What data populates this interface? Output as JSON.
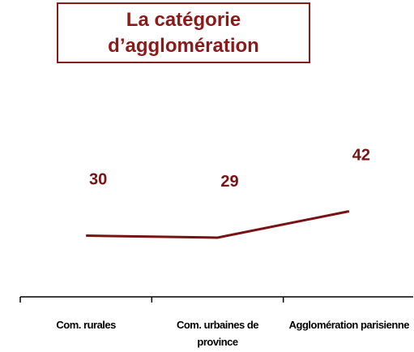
{
  "chart_data": {
    "type": "line",
    "title": "La catégorie d’agglomération",
    "categories": [
      "Com. rurales",
      "Com. urbaines de province",
      "Agglomération parisienne"
    ],
    "values": [
      30,
      29,
      42
    ],
    "color": "#7a1214"
  }
}
